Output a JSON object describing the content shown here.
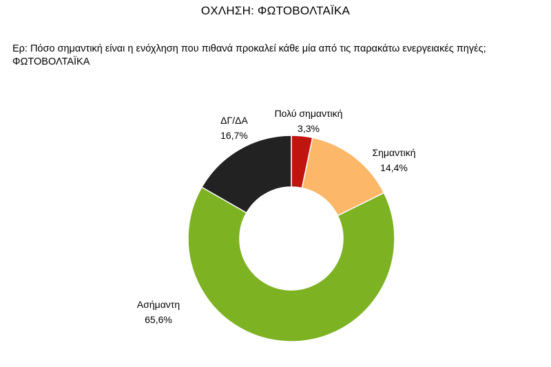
{
  "header": {
    "title": "ΟΧΛΗΣΗ: ΦΩΤΟΒΟΛΤΑΪΚΑ"
  },
  "question": {
    "prefix": "Ερ:",
    "text": "Πόσο σημαντική είναι η ενόχληση που πιθανά προκαλεί κάθε μία από τις παρακάτω ενεργειακές πηγές;",
    "subject": "ΦΩΤΟΒΟΛΤΑΪΚΑ"
  },
  "chart_data": {
    "type": "pie",
    "variant": "donut",
    "title": "",
    "slices": [
      {
        "label": "Πολύ σημαντική",
        "value": 3.3,
        "value_label": "3,3%",
        "color": "#C0140F"
      },
      {
        "label": "Σημαντική",
        "value": 14.4,
        "value_label": "14,4%",
        "color": "#FDB769"
      },
      {
        "label": "Ασήμαντη",
        "value": 65.6,
        "value_label": "65,6%",
        "color": "#7DB223"
      },
      {
        "label": "ΔΓ/ΔΑ",
        "value": 16.7,
        "value_label": "16,7%",
        "color": "#222222"
      }
    ],
    "legend": "none"
  }
}
